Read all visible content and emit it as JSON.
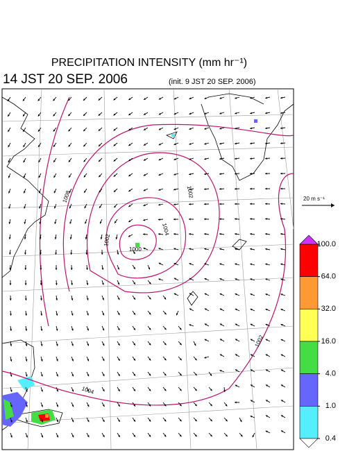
{
  "header": {
    "title": "PRECIPITATION INTENSITY (mm hr⁻¹)",
    "valid_time": "14 JST 20 SEP. 2006",
    "init_time": "(init. 9 JST 20 SEP. 2006)"
  },
  "vector_scale": {
    "label": "20 m s⁻¹"
  },
  "colorbar": {
    "levels": [
      {
        "value": 100,
        "label": "100.0"
      },
      {
        "value": 64,
        "label": "64.0"
      },
      {
        "value": 32,
        "label": "32.0"
      },
      {
        "value": 16,
        "label": "16.0"
      },
      {
        "value": 4,
        "label": "4.0"
      },
      {
        "value": 1,
        "label": "1.0"
      },
      {
        "value": 0.4,
        "label": "0.4"
      }
    ],
    "colors": [
      "#ff0000",
      "#ff9933",
      "#ffff55",
      "#44dd44",
      "#6666ff",
      "#55eeff"
    ],
    "over_color": "#cc33ff",
    "under_color": "#ffffff"
  },
  "contour_labels": [
    "1008",
    "1002",
    "1000",
    "1004",
    "1002",
    "1002",
    "1004"
  ]
}
